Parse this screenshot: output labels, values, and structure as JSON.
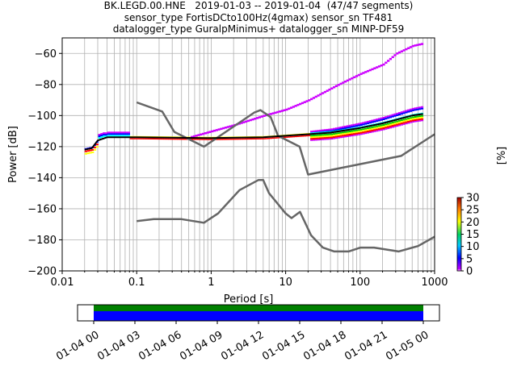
{
  "title_lines": [
    "BK.LEGD.00.HNE   2019-01-03 -- 2019-01-04  (47/47 segments)",
    "sensor_type FortisDCto100Hz(4gmax) sensor_sn TF481",
    "datalogger_type GuralpMinimus+ datalogger_sn MINP-DF59"
  ],
  "chart_data": {
    "type": "heatmap",
    "xlabel": "Period [s]",
    "ylabel": "Power [dB]",
    "xscale": "log",
    "xlim": [
      0.01,
      1000
    ],
    "ylim": [
      -200,
      -50
    ],
    "grid": true,
    "x_ticks": [
      {
        "v": 0.01,
        "label": "0.01"
      },
      {
        "v": 0.1,
        "label": "0.1"
      },
      {
        "v": 1,
        "label": "1"
      },
      {
        "v": 10,
        "label": "10"
      },
      {
        "v": 100,
        "label": "100"
      },
      {
        "v": 1000,
        "label": "1000"
      }
    ],
    "y_ticks": [
      {
        "v": -60,
        "label": "−60"
      },
      {
        "v": -80,
        "label": "−80"
      },
      {
        "v": -100,
        "label": "−100"
      },
      {
        "v": -120,
        "label": "−120"
      },
      {
        "v": -140,
        "label": "−140"
      },
      {
        "v": -160,
        "label": "−160"
      },
      {
        "v": -180,
        "label": "−180"
      },
      {
        "v": -200,
        "label": "−200"
      }
    ],
    "colorbar": {
      "label": "[%]",
      "min": 0,
      "max": 30,
      "ticks": [
        "0",
        "5",
        "10",
        "15",
        "20",
        "25",
        "30"
      ]
    },
    "colors": {
      "noise_models": "#666666",
      "mode_line": "#000000",
      "density_lowest": "#cc00ff",
      "density_blue": "#0000ff",
      "density_cyan": "#00ffff",
      "density_green": "#00cc00",
      "density_yellow": "#ffff00",
      "density_red": "#ff0000",
      "coverage_data": "#0000ff",
      "coverage_gaps": "#008000"
    },
    "series": [
      {
        "kind": "noise_model_high",
        "x": [
          0.1,
          0.22,
          0.32,
          0.8,
          3.8,
          4.6,
          6.3,
          7.9,
          15.4,
          20,
          354.8,
          1000
        ],
        "y": [
          -91.5,
          -97.4,
          -110.5,
          -120,
          -98,
          -96.5,
          -101,
          -113,
          -120,
          -138,
          -126,
          -112
        ]
      },
      {
        "kind": "noise_model_low",
        "x": [
          0.1,
          0.17,
          0.4,
          0.8,
          1.24,
          2.4,
          4.3,
          5,
          6,
          10,
          12,
          15.6,
          21.9,
          31.6,
          45,
          70,
          101,
          154,
          328,
          600,
          1000
        ],
        "y": [
          -168,
          -166.7,
          -166.7,
          -169,
          -163,
          -148,
          -141.5,
          -141.5,
          -150,
          -163,
          -166,
          -162,
          -177,
          -185,
          -187.5,
          -187.5,
          -185,
          -185,
          -187.5,
          -184,
          -178
        ]
      },
      {
        "kind": "mode_line",
        "x": [
          0.02,
          0.025,
          0.03,
          0.04,
          0.1,
          1,
          5,
          10,
          20,
          40,
          100,
          200,
          500,
          700
        ],
        "y": [
          -122,
          -121,
          -116,
          -114,
          -114,
          -114.5,
          -114,
          -113,
          -112,
          -111,
          -108,
          -105,
          -100,
          -99
        ]
      },
      {
        "kind": "density_upper_branch",
        "x": [
          0.5,
          1,
          2,
          5,
          10,
          20,
          50,
          100,
          200,
          300,
          500,
          700
        ],
        "y": [
          -114,
          -110,
          -106,
          -100,
          -96,
          -90,
          -80,
          -73,
          -67,
          -60,
          -55,
          -53.5
        ]
      }
    ],
    "time_axis": {
      "ticks": [
        "01-04 00",
        "01-04 03",
        "01-04 06",
        "01-04 09",
        "01-04 12",
        "01-04 15",
        "01-04 18",
        "01-04 21",
        "01-05 00"
      ]
    }
  }
}
